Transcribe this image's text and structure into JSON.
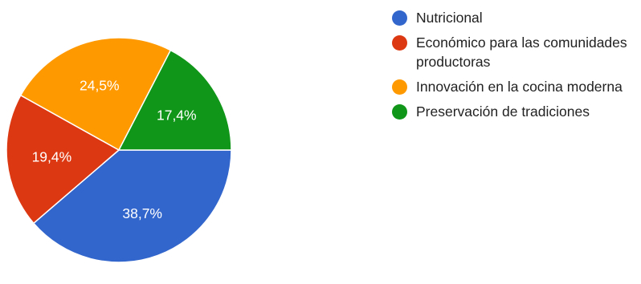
{
  "chart_data": {
    "type": "pie",
    "start_angle_deg": 90,
    "direction": "counterclockwise",
    "slices": [
      {
        "label": "Nutricional",
        "value": 38.7,
        "value_label": "38,7%",
        "color": "#3366cc"
      },
      {
        "label": "Económico para las comunidades productoras",
        "value": 19.4,
        "value_label": "19,4%",
        "color": "#dc3912"
      },
      {
        "label": "Innovación en la cocina moderna",
        "value": 24.5,
        "value_label": "24,5%",
        "color": "#ff9900"
      },
      {
        "label": "Preservación de tradiciones",
        "value": 17.4,
        "value_label": "17,4%",
        "color": "#109618"
      }
    ],
    "legend_position": "right"
  }
}
